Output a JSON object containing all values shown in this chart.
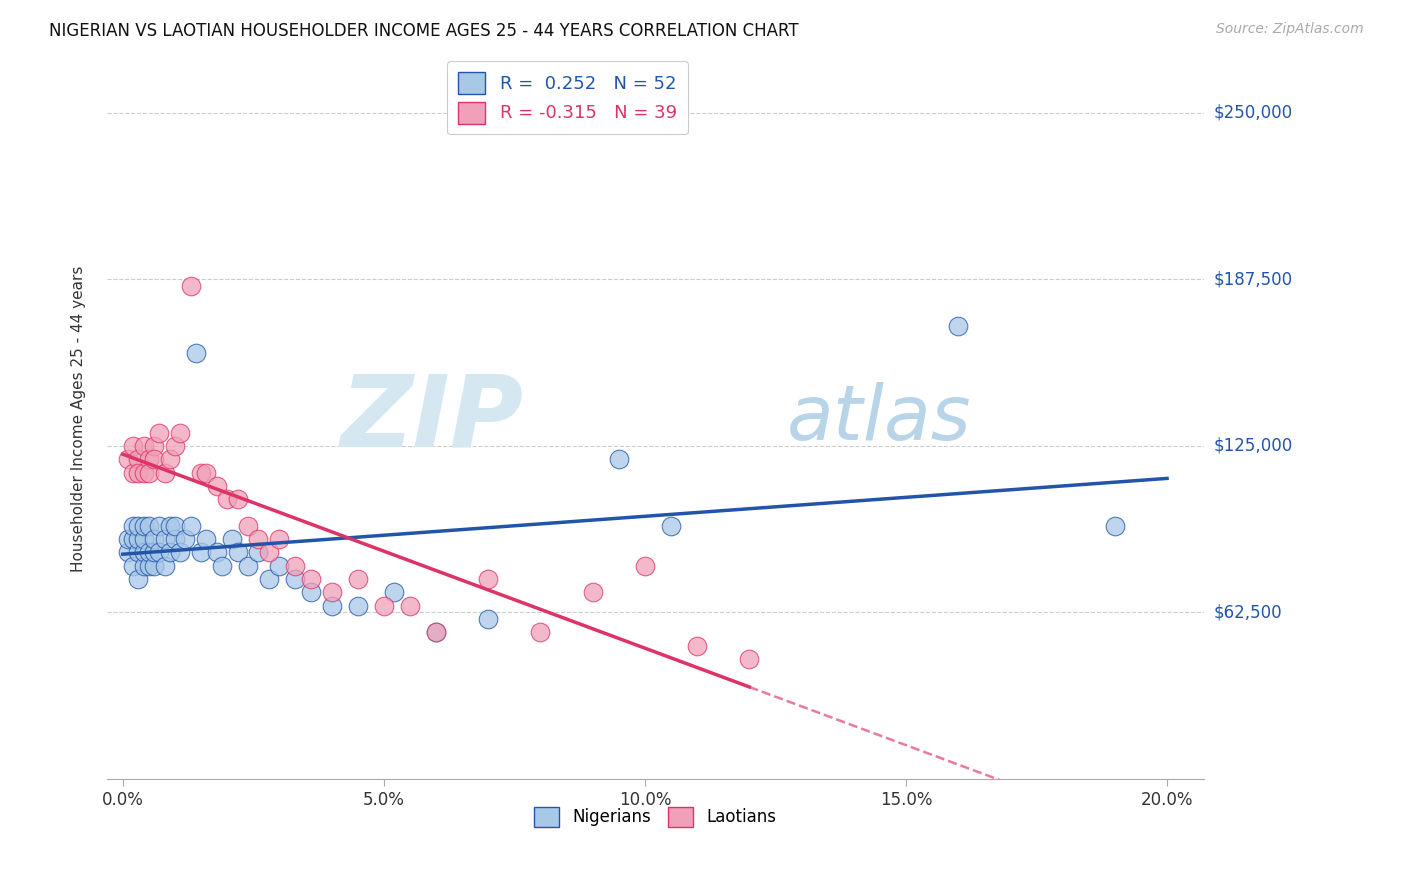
{
  "title": "NIGERIAN VS LAOTIAN HOUSEHOLDER INCOME AGES 25 - 44 YEARS CORRELATION CHART",
  "source": "Source: ZipAtlas.com",
  "ylabel": "Householder Income Ages 25 - 44 years",
  "xtick_labels": [
    "0.0%",
    "5.0%",
    "10.0%",
    "15.0%",
    "20.0%"
  ],
  "xtick_vals": [
    0.0,
    0.05,
    0.1,
    0.15,
    0.2
  ],
  "ytick_labels": [
    "$62,500",
    "$125,000",
    "$187,500",
    "$250,000"
  ],
  "ytick_vals": [
    62500,
    125000,
    187500,
    250000
  ],
  "ylim": [
    0,
    270000
  ],
  "xlim": [
    -0.003,
    0.207
  ],
  "nigerian_R": 0.252,
  "nigerian_N": 52,
  "laotian_R": -0.315,
  "laotian_N": 39,
  "nigerian_color": "#a8c8e8",
  "nigerian_line_color": "#2255aa",
  "laotian_color": "#f0a0b8",
  "laotian_line_color": "#dd3366",
  "nigerian_scatter_x": [
    0.001,
    0.001,
    0.002,
    0.002,
    0.002,
    0.003,
    0.003,
    0.003,
    0.003,
    0.004,
    0.004,
    0.004,
    0.004,
    0.005,
    0.005,
    0.005,
    0.006,
    0.006,
    0.006,
    0.007,
    0.007,
    0.008,
    0.008,
    0.009,
    0.009,
    0.01,
    0.01,
    0.011,
    0.012,
    0.013,
    0.014,
    0.015,
    0.016,
    0.018,
    0.019,
    0.021,
    0.022,
    0.024,
    0.026,
    0.028,
    0.03,
    0.033,
    0.036,
    0.04,
    0.045,
    0.052,
    0.06,
    0.07,
    0.095,
    0.105,
    0.16,
    0.19
  ],
  "nigerian_scatter_y": [
    85000,
    90000,
    80000,
    90000,
    95000,
    75000,
    85000,
    90000,
    95000,
    80000,
    85000,
    90000,
    95000,
    80000,
    85000,
    95000,
    80000,
    85000,
    90000,
    85000,
    95000,
    80000,
    90000,
    85000,
    95000,
    90000,
    95000,
    85000,
    90000,
    95000,
    160000,
    85000,
    90000,
    85000,
    80000,
    90000,
    85000,
    80000,
    85000,
    75000,
    80000,
    75000,
    70000,
    65000,
    65000,
    70000,
    55000,
    60000,
    120000,
    95000,
    170000,
    95000
  ],
  "laotian_scatter_x": [
    0.001,
    0.002,
    0.002,
    0.003,
    0.003,
    0.004,
    0.004,
    0.005,
    0.005,
    0.006,
    0.006,
    0.007,
    0.008,
    0.009,
    0.01,
    0.011,
    0.013,
    0.015,
    0.016,
    0.018,
    0.02,
    0.022,
    0.024,
    0.026,
    0.028,
    0.03,
    0.033,
    0.036,
    0.04,
    0.045,
    0.05,
    0.055,
    0.06,
    0.07,
    0.08,
    0.09,
    0.1,
    0.11,
    0.12
  ],
  "laotian_scatter_y": [
    120000,
    115000,
    125000,
    120000,
    115000,
    125000,
    115000,
    120000,
    115000,
    125000,
    120000,
    130000,
    115000,
    120000,
    125000,
    130000,
    185000,
    115000,
    115000,
    110000,
    105000,
    105000,
    95000,
    90000,
    85000,
    90000,
    80000,
    75000,
    70000,
    75000,
    65000,
    65000,
    55000,
    75000,
    55000,
    70000,
    80000,
    50000,
    45000
  ],
  "watermark_ZIP": "ZIP",
  "watermark_atlas": "atlas",
  "background_color": "#ffffff",
  "grid_color": "#cccccc"
}
